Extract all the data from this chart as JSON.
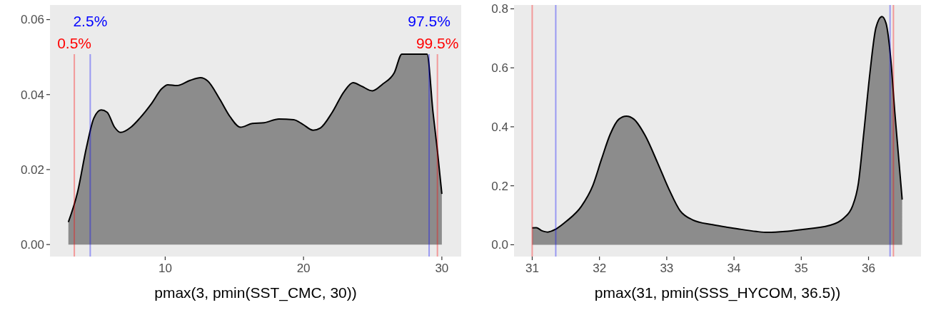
{
  "chart_data": [
    {
      "type": "area",
      "xlabel": "pmax(3, pmin(SST_CMC, 30))",
      "xlim": [
        1.67,
        31.4
      ],
      "ylim": [
        -0.0032,
        0.0639
      ],
      "xticks": [
        10,
        20,
        30
      ],
      "yticks": [
        {
          "value": 0,
          "label": "0.00"
        },
        {
          "value": 0.02,
          "label": "0.02"
        },
        {
          "value": 0.04,
          "label": "0.04"
        },
        {
          "value": 0.06,
          "label": "0.06"
        }
      ],
      "grid": false,
      "annotations": [
        "0.5%",
        "2.5%",
        "97.5%",
        "99.5%"
      ],
      "series": [
        {
          "color": "#8c8c8c",
          "x": [
            3.0,
            3.66,
            4.3,
            4.84,
            5.37,
            5.8,
            6.34,
            6.77,
            7.52,
            8.16,
            9.01,
            9.76,
            10.19,
            10.84,
            11.8,
            12.55,
            13.08,
            13.94,
            14.69,
            15.44,
            16.3,
            17.15,
            18.22,
            19.29,
            19.94,
            20.69,
            21.22,
            22.08,
            22.93,
            23.58,
            24.22,
            24.97,
            25.72,
            26.57,
            27.11,
            28.93,
            29.36,
            29.68,
            30.0
          ],
          "values": [
            0.006,
            0.0139,
            0.0258,
            0.0337,
            0.0359,
            0.0353,
            0.0313,
            0.0299,
            0.0313,
            0.0337,
            0.0376,
            0.0416,
            0.0426,
            0.0424,
            0.0438,
            0.0445,
            0.0436,
            0.0388,
            0.0341,
            0.0313,
            0.0323,
            0.0325,
            0.0335,
            0.0333,
            0.0321,
            0.0305,
            0.0311,
            0.0353,
            0.0408,
            0.0432,
            0.0422,
            0.041,
            0.0428,
            0.0459,
            0.0508,
            0.0508,
            0.0353,
            0.025,
            0.0135
          ]
        }
      ],
      "ref_lines": [
        {
          "axis": "x",
          "value": 3.43,
          "color": "#ff0000"
        },
        {
          "axis": "x",
          "value": 4.58,
          "color": "#0000ff"
        },
        {
          "axis": "x",
          "value": 29.08,
          "color": "#0000ff"
        },
        {
          "axis": "x",
          "value": 29.68,
          "color": "#ff0000"
        }
      ]
    },
    {
      "type": "area",
      "xlabel": "pmax(31, pmin(SSS_HYCOM, 36.5))",
      "xlim": [
        30.73,
        36.78
      ],
      "ylim": [
        -0.04,
        0.813
      ],
      "xticks": [
        31,
        32,
        33,
        34,
        35,
        36
      ],
      "yticks": [
        {
          "value": 0,
          "label": "0.0"
        },
        {
          "value": 0.2,
          "label": "0.2"
        },
        {
          "value": 0.4,
          "label": "0.4"
        },
        {
          "value": 0.6,
          "label": "0.6"
        },
        {
          "value": 0.8,
          "label": "0.8"
        }
      ],
      "grid": false,
      "series": [
        {
          "color": "#8c8c8c",
          "x": [
            31.0,
            31.06,
            31.14,
            31.23,
            31.35,
            31.51,
            31.73,
            31.9,
            32.03,
            32.16,
            32.29,
            32.4,
            32.51,
            32.68,
            32.86,
            33.03,
            33.2,
            33.38,
            33.68,
            34.03,
            34.33,
            34.5,
            34.76,
            35.02,
            35.41,
            35.63,
            35.76,
            35.85,
            35.93,
            36.02,
            36.11,
            36.2,
            36.26,
            36.33,
            36.39,
            36.5
          ],
          "values": [
            0.057,
            0.058,
            0.048,
            0.043,
            0.053,
            0.08,
            0.13,
            0.2,
            0.29,
            0.375,
            0.426,
            0.436,
            0.426,
            0.37,
            0.28,
            0.19,
            0.115,
            0.085,
            0.068,
            0.055,
            0.045,
            0.042,
            0.045,
            0.052,
            0.065,
            0.09,
            0.13,
            0.21,
            0.38,
            0.581,
            0.736,
            0.774,
            0.751,
            0.631,
            0.451,
            0.153
          ]
        }
      ],
      "ref_lines": [
        {
          "axis": "x",
          "value": 31.0,
          "color": "#ff0000"
        },
        {
          "axis": "x",
          "value": 31.35,
          "color": "#0000ff"
        },
        {
          "axis": "x",
          "value": 36.32,
          "color": "#0000ff"
        },
        {
          "axis": "x",
          "value": 36.37,
          "color": "#ff0000"
        }
      ]
    }
  ]
}
